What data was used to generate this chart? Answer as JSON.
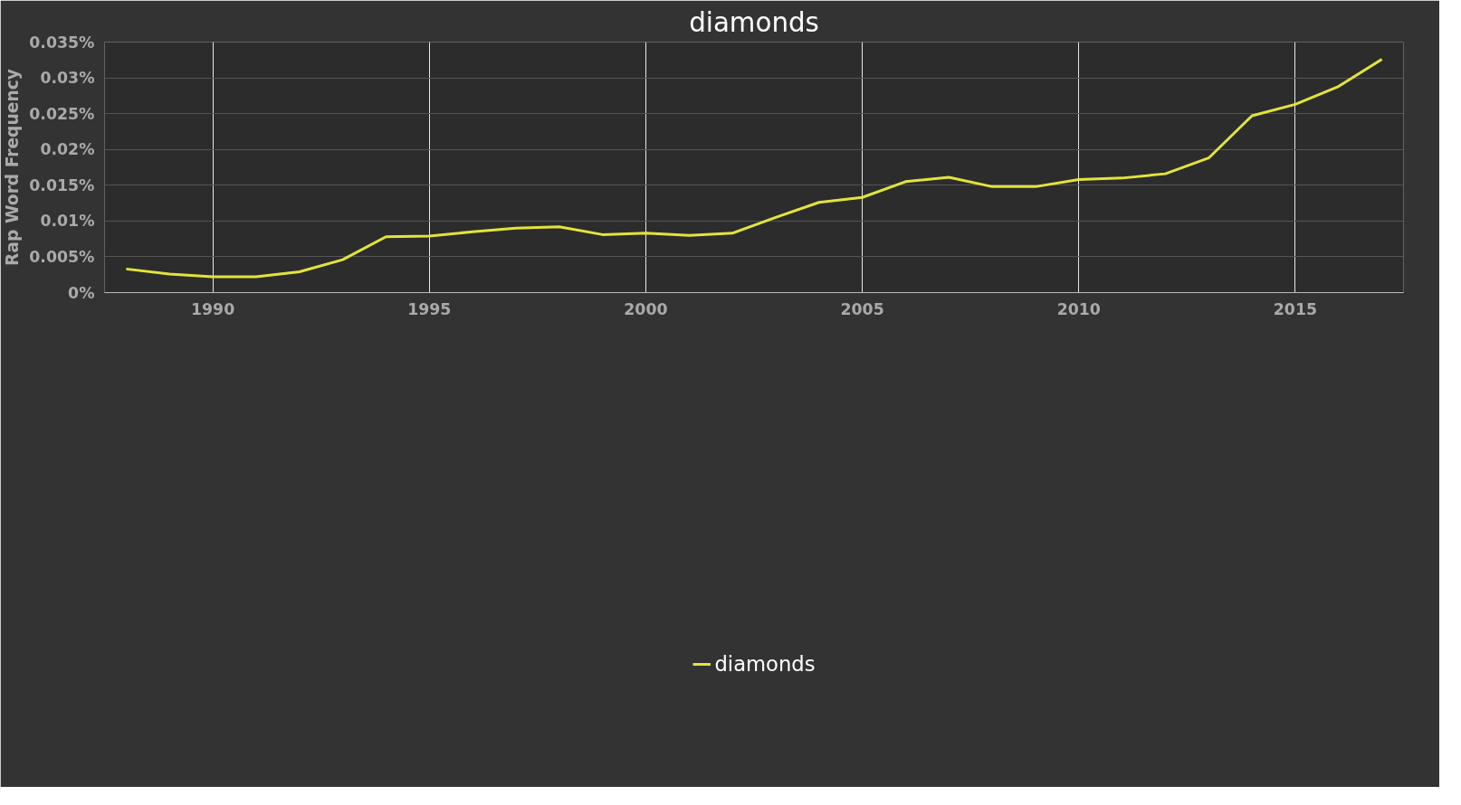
{
  "chart_data": {
    "type": "line",
    "title": "diamonds",
    "ylabel": "Rap Word Frequency",
    "x": [
      1988,
      1989,
      1990,
      1991,
      1992,
      1993,
      1994,
      1995,
      1996,
      1997,
      1998,
      1999,
      2000,
      2001,
      2002,
      2003,
      2004,
      2005,
      2006,
      2007,
      2008,
      2009,
      2010,
      2011,
      2012,
      2013,
      2014,
      2015,
      2016,
      2017
    ],
    "series": [
      {
        "name": "diamonds",
        "color": "#e3e33c",
        "values": [
          0.0033,
          0.0026,
          0.0022,
          0.0022,
          0.0029,
          0.0046,
          0.0078,
          0.0079,
          0.0085,
          0.009,
          0.0092,
          0.0081,
          0.0083,
          0.008,
          0.0083,
          0.0105,
          0.0126,
          0.0133,
          0.0155,
          0.0161,
          0.0148,
          0.0148,
          0.0158,
          0.016,
          0.0166,
          0.0188,
          0.0247,
          0.0263,
          0.0288,
          0.0326
        ]
      }
    ],
    "xlim": [
      1987.5,
      2017.5
    ],
    "xticks": [
      1990,
      1995,
      2000,
      2005,
      2010,
      2015
    ],
    "ylim": [
      0,
      0.035
    ],
    "yticks": [
      {
        "value": 0,
        "label": "0%"
      },
      {
        "value": 0.005,
        "label": "0.005%"
      },
      {
        "value": 0.01,
        "label": "0.01%"
      },
      {
        "value": 0.015,
        "label": "0.015%"
      },
      {
        "value": 0.02,
        "label": "0.02%"
      },
      {
        "value": 0.025,
        "label": "0.025%"
      },
      {
        "value": 0.03,
        "label": "0.03%"
      },
      {
        "value": 0.035,
        "label": "0.035%"
      }
    ],
    "grid": true,
    "legend": "bottom",
    "marker": "none",
    "line_style": "solid"
  }
}
